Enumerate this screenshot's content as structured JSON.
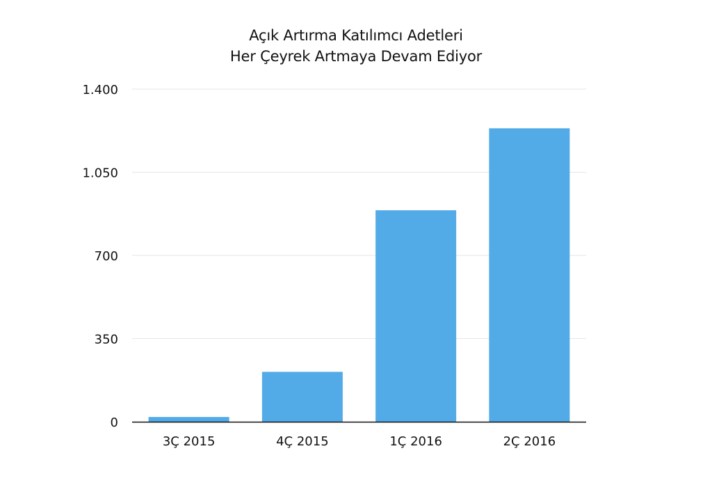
{
  "chart_data": {
    "type": "bar",
    "title": "Açık Artırma Katılımcı Adetleri",
    "subtitle": "Her Çeyrek Artmaya Devam Ediyor",
    "categories": [
      "3Ç 2015",
      "4Ç 2015",
      "1Ç 2016",
      "2Ç 2016"
    ],
    "values": [
      20,
      210,
      890,
      1235
    ],
    "xlabel": "",
    "ylabel": "",
    "ylim": [
      0,
      1400
    ],
    "yticks": [
      0,
      350,
      700,
      1050,
      1400
    ],
    "ytick_labels": [
      "0",
      "350",
      "700",
      "1.050",
      "1.400"
    ],
    "grid": true,
    "legend": "none",
    "bar_color": "#52abe7",
    "grid_color": "#e6e6e6",
    "axis_color": "#111111"
  }
}
